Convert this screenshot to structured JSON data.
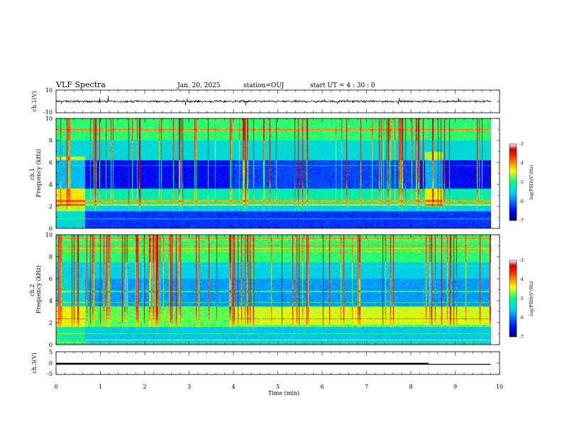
{
  "header": {
    "title": "VLF Spectra",
    "date": "Jan. 20, 2025",
    "station": "station=OUJ",
    "start_ut": "start UT =  4 : 30 : 0"
  },
  "chart_data": [
    {
      "type": "line",
      "panel": "ch1-waveform",
      "ylabel": "ch.1(V)",
      "ylim": [
        -10,
        10
      ],
      "yticks": [
        "10",
        "-10"
      ],
      "xlim": [
        0,
        10
      ],
      "trace_extent_min": [
        0,
        9.8
      ],
      "trace_level_V": 0,
      "trace_amplitude_V": 1.5
    },
    {
      "type": "heatmap",
      "panel": "ch1-spectrogram",
      "ylabel": "ch.1\nFrequency (kHz)",
      "ylim": [
        0,
        10
      ],
      "yticks": [
        "10",
        "8",
        "6",
        "4",
        "2",
        "0"
      ],
      "xlim": [
        0,
        10
      ],
      "data_extent_min": [
        0,
        9.8
      ],
      "colorbar": {
        "label": "log(PSD)(V²/Hz)",
        "range": [
          -7,
          -3
        ],
        "ticks": [
          "-3",
          "-4",
          "-5",
          "-6",
          "-7"
        ]
      }
    },
    {
      "type": "heatmap",
      "panel": "ch2-spectrogram",
      "ylabel": "ch.2\nFrequency (kHz)",
      "ylim": [
        0,
        10
      ],
      "yticks": [
        "10",
        "8",
        "6",
        "4",
        "2",
        "0"
      ],
      "xlim": [
        0,
        10
      ],
      "data_extent_min": [
        0,
        9.8
      ],
      "colorbar": {
        "label": "log(PSD)(V²/Hz)",
        "range": [
          -7,
          -3
        ],
        "ticks": [
          "-3",
          "-4",
          "-5",
          "-6",
          "-7"
        ]
      }
    },
    {
      "type": "line",
      "panel": "ch3-waveform",
      "ylabel": "ch.3(V)",
      "ylim": [
        -5,
        5
      ],
      "yticks": [
        "5",
        "0",
        "-5"
      ],
      "xlim": [
        0,
        10
      ],
      "xlabel": "Time (min)",
      "xticks": [
        "0",
        "1",
        "2",
        "3",
        "4",
        "5",
        "6",
        "7",
        "8",
        "9",
        "10"
      ],
      "trace_extent_min": [
        0,
        9.8
      ],
      "trace_level_V": -0.3,
      "thick_until_min": 8.4
    }
  ]
}
